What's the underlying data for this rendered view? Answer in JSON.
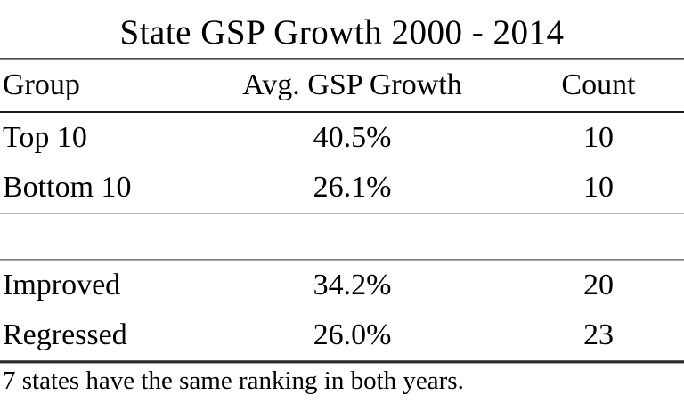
{
  "table": {
    "title": "State GSP Growth 2000 - 2014",
    "columns": [
      "Group",
      "Avg. GSP Growth",
      "Count"
    ],
    "rows": [
      {
        "group": "Top 10",
        "growth": "40.5%",
        "count": "10"
      },
      {
        "group": "Bottom 10",
        "growth": "26.1%",
        "count": "10"
      },
      {
        "group": "Improved",
        "growth": "34.2%",
        "count": "20"
      },
      {
        "group": "Regressed",
        "growth": "26.0%",
        "count": "23"
      }
    ],
    "footnote": "7 states have the same ranking in both years."
  },
  "colors": {
    "background": "#ffffff",
    "text": "#000000",
    "rule_dark": "#1c1c1c",
    "rule_gray": "#8a8a8a"
  },
  "chart_data": {
    "type": "table",
    "title": "State GSP Growth 2000 - 2014",
    "columns": [
      "Group",
      "Avg. GSP Growth",
      "Count"
    ],
    "categories": [
      "Top 10",
      "Bottom 10",
      "Improved",
      "Regressed"
    ],
    "series": [
      {
        "name": "Avg. GSP Growth (%)",
        "values": [
          40.5,
          26.1,
          34.2,
          26.0
        ]
      },
      {
        "name": "Count",
        "values": [
          10,
          10,
          20,
          23
        ]
      }
    ],
    "annotations": [
      "7 states have the same ranking in both years."
    ],
    "layout": {
      "group_breaks_after": [
        "Bottom 10"
      ],
      "grid": "horizontal-rules-only",
      "legend": "none"
    }
  }
}
